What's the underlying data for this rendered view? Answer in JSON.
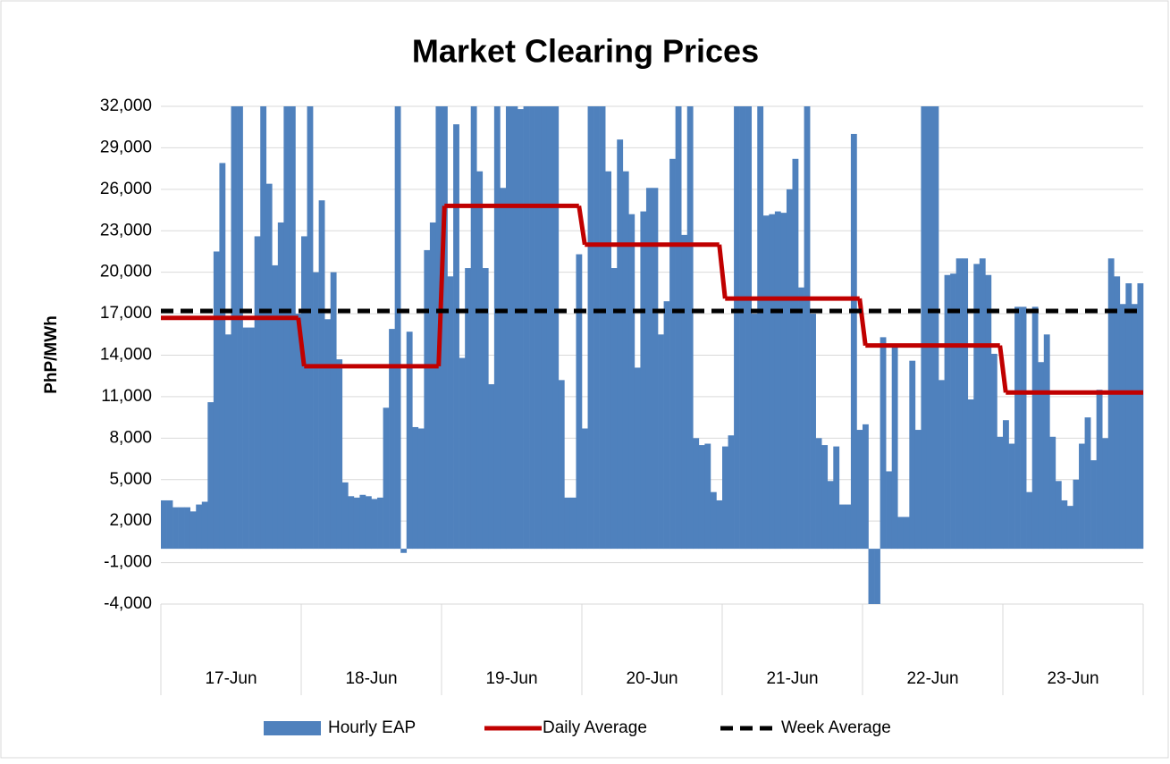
{
  "chart_data": {
    "type": "bar",
    "title": "Market Clearing Prices",
    "y_label": "PhP/MWh",
    "days": [
      "17-Jun",
      "18-Jun",
      "19-Jun",
      "20-Jun",
      "21-Jun",
      "22-Jun",
      "23-Jun"
    ],
    "ylim": [
      -4000,
      32000
    ],
    "yticks": [
      {
        "value": -4000,
        "label": "-4,000"
      },
      {
        "value": -1000,
        "label": "-1,000"
      },
      {
        "value": 2000,
        "label": "2,000"
      },
      {
        "value": 5000,
        "label": "5,000"
      },
      {
        "value": 8000,
        "label": "8,000"
      },
      {
        "value": 11000,
        "label": "11,000"
      },
      {
        "value": 14000,
        "label": "14,000"
      },
      {
        "value": 17000,
        "label": "17,000"
      },
      {
        "value": 20000,
        "label": "20,000"
      },
      {
        "value": 23000,
        "label": "23,000"
      },
      {
        "value": 26000,
        "label": "26,000"
      },
      {
        "value": 29000,
        "label": "29,000"
      },
      {
        "value": 32000,
        "label": "32,000"
      }
    ],
    "grid": true,
    "legend": "bottom",
    "hourly": {
      "name": "Hourly EAP",
      "color": "#4f81bd",
      "values": [
        3500,
        3500,
        3000,
        3000,
        3000,
        2700,
        3200,
        3400,
        10600,
        21500,
        27900,
        15500,
        32000,
        32000,
        16000,
        16000,
        22600,
        32000,
        26400,
        20500,
        23600,
        32000,
        32000,
        17000,
        22600,
        32000,
        20000,
        25200,
        16600,
        20000,
        13700,
        4800,
        3800,
        3700,
        3900,
        3800,
        3600,
        3700,
        10200,
        15900,
        32000,
        -300,
        15700,
        8800,
        8700,
        21600,
        23600,
        32000,
        32000,
        19700,
        30700,
        13800,
        20300,
        32000,
        27300,
        20300,
        11900,
        32000,
        26100,
        32000,
        32000,
        31800,
        32000,
        32000,
        32000,
        32000,
        32000,
        32000,
        12200,
        3700,
        3700,
        21300,
        8700,
        32000,
        32000,
        32000,
        27300,
        20300,
        29600,
        27300,
        24200,
        13100,
        24400,
        26100,
        26100,
        15500,
        17900,
        28200,
        32000,
        22700,
        32000,
        8000,
        7500,
        7600,
        4100,
        3500,
        7400,
        8200,
        32000,
        32000,
        32000,
        17000,
        32000,
        24100,
        24200,
        24400,
        24300,
        26000,
        28200,
        18900,
        32000,
        17000,
        8000,
        7500,
        4900,
        7400,
        3200,
        3200,
        30000,
        8600,
        9000,
        -4000,
        -4000,
        15300,
        5600,
        14800,
        2300,
        2300,
        13600,
        8600,
        32000,
        32000,
        32000,
        12200,
        19800,
        19900,
        21000,
        21000,
        10800,
        20600,
        21000,
        19800,
        14100,
        8100,
        9300,
        7600,
        17500,
        17500,
        4100,
        17500,
        13500,
        15500,
        8100,
        4900,
        3500,
        3100,
        5000,
        7600,
        9500,
        6400,
        11500,
        8000,
        21000,
        19700,
        17700,
        19200,
        17700,
        19200
      ]
    },
    "daily": {
      "name": "Daily Average",
      "color": "#c00000",
      "values": [
        16700,
        13200,
        24800,
        22000,
        18100,
        14700,
        11300
      ]
    },
    "week": {
      "name": "Week Average",
      "color": "#000000",
      "value": 17200
    }
  }
}
